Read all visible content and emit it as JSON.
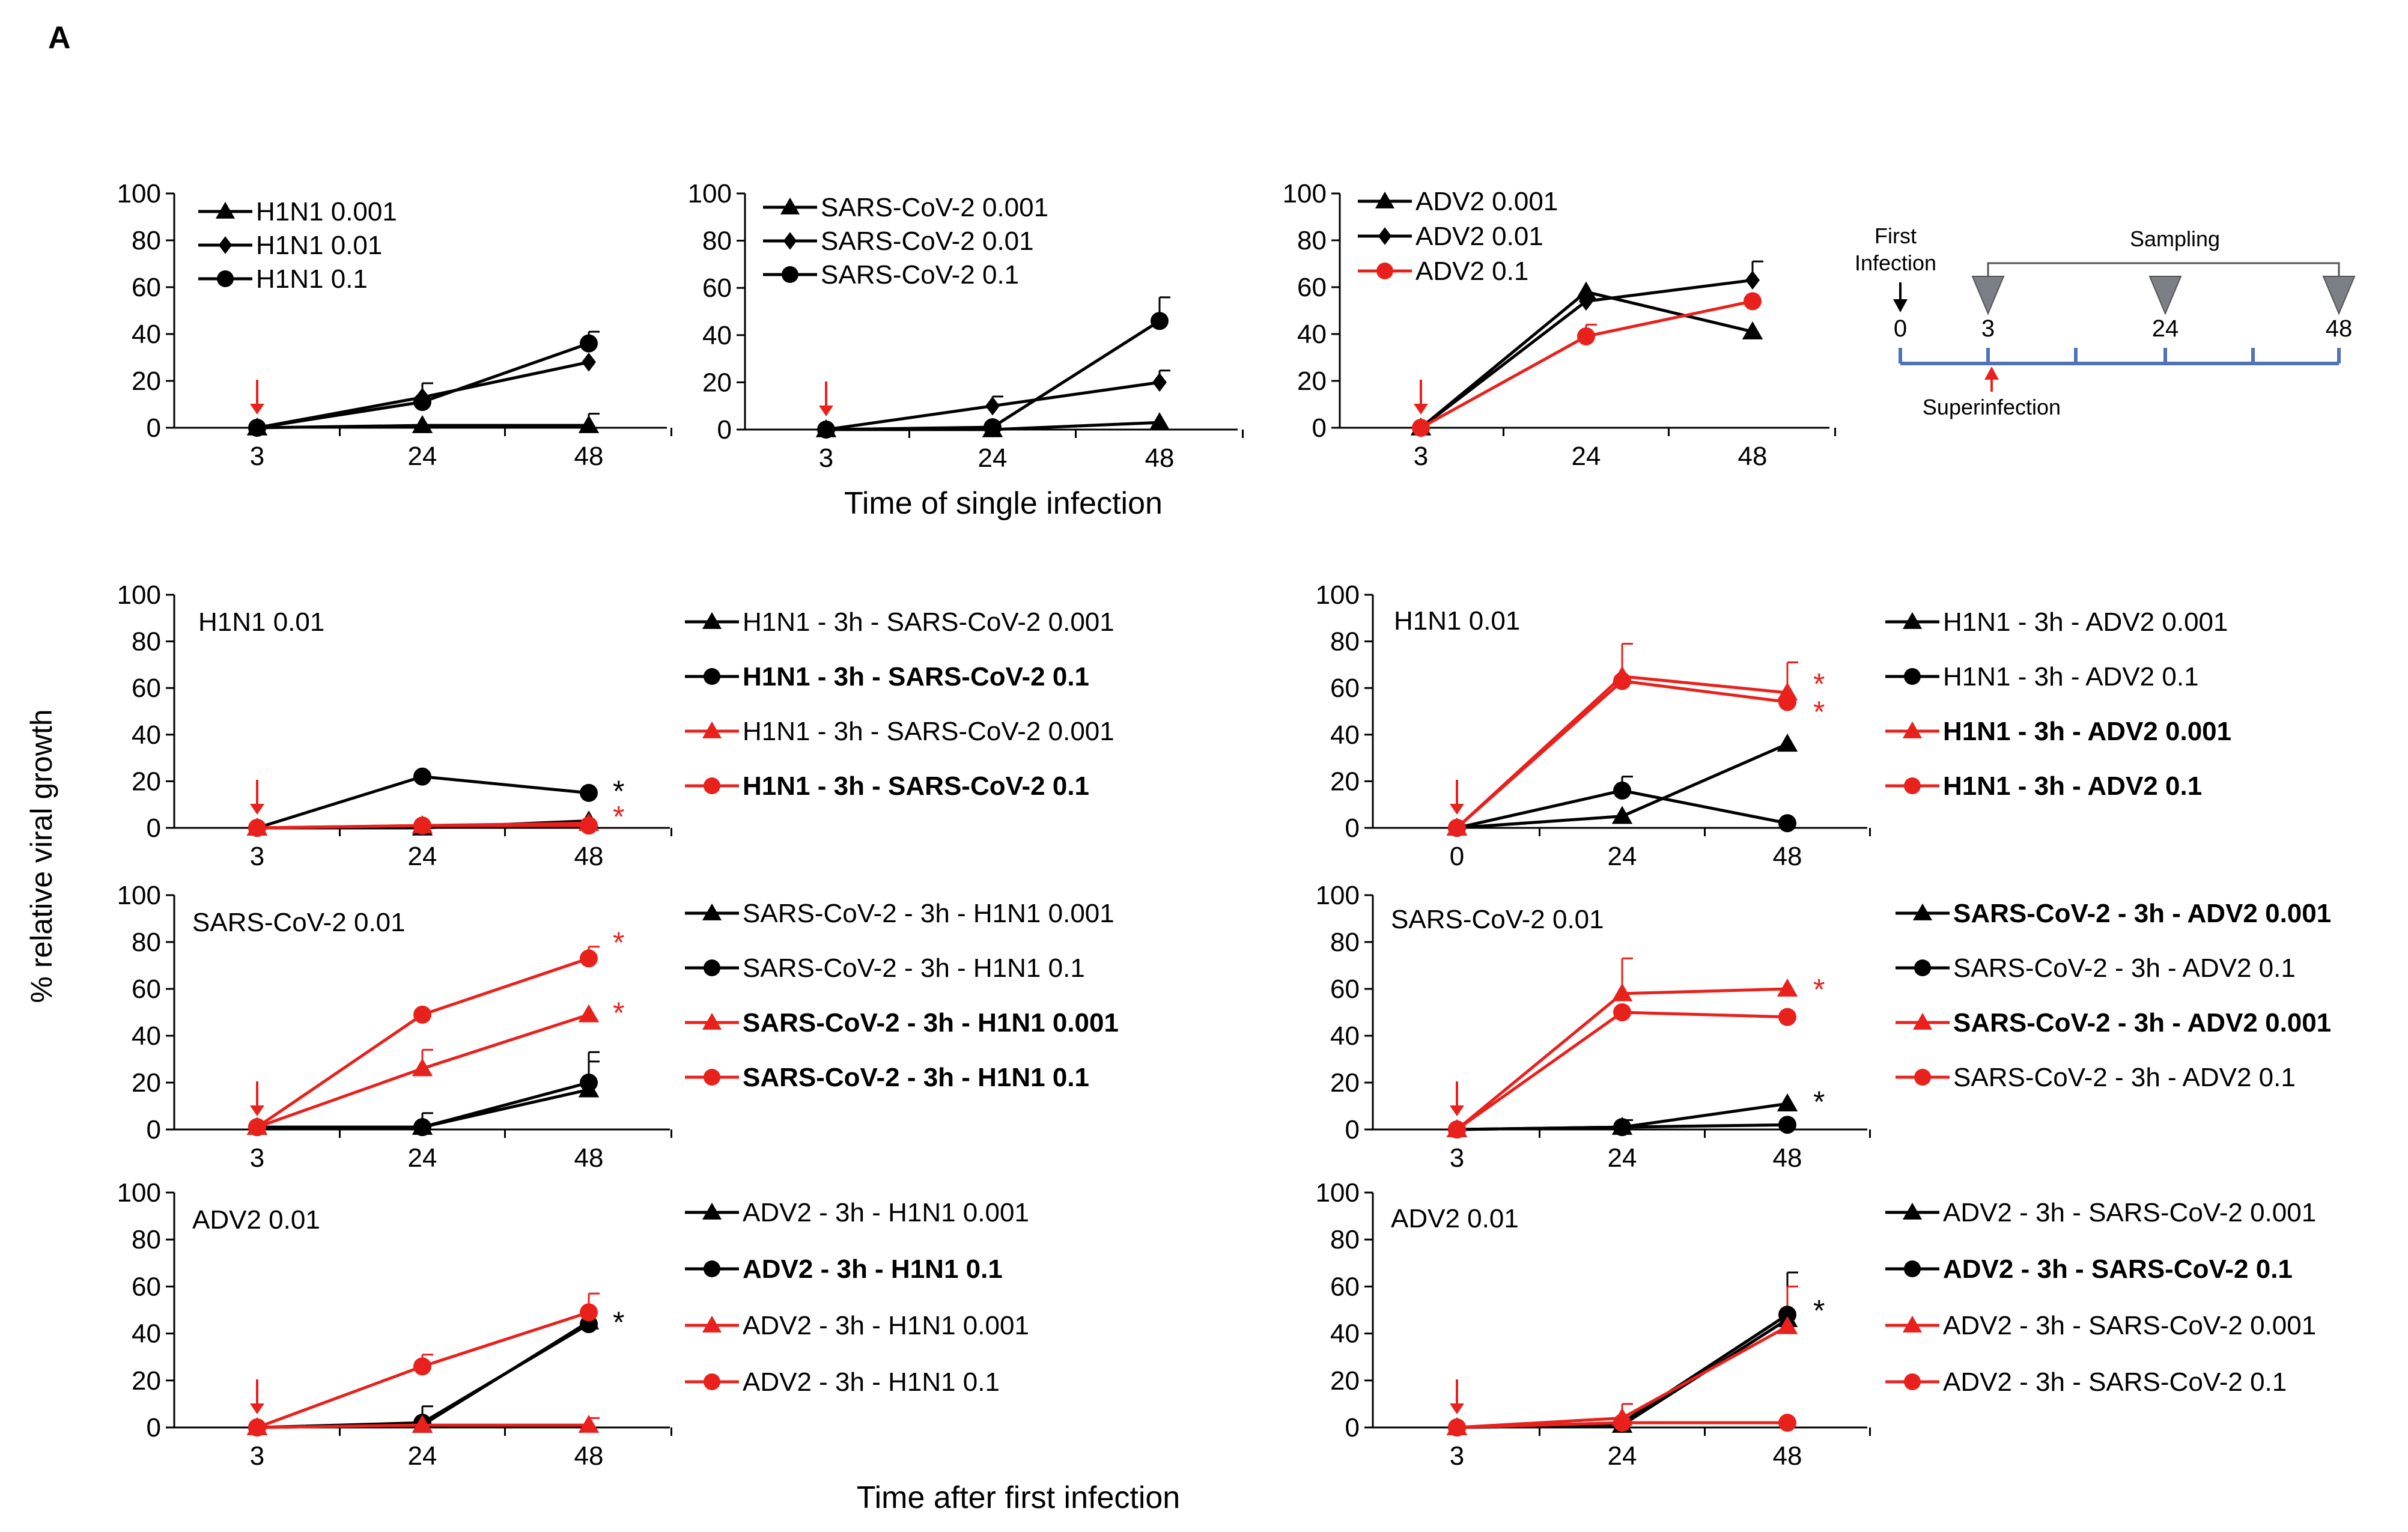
{
  "figure": {
    "panel_letter": "A",
    "y_axis_label": "% relative viral growth",
    "single_infection_xlabel": "Time of single infection",
    "after_infection_xlabel": "Time after first infection"
  },
  "schematic": {
    "first_label_line1": "First",
    "first_label_line2": "Infection",
    "sampling_label": "Sampling",
    "superinfection_label": "Superinfection",
    "ticks": [
      "0",
      "3",
      "24",
      "48"
    ]
  },
  "colors": {
    "black": "#000000",
    "red": "#e8211d",
    "timeline": "#4f72b8",
    "marker_gray": "#7c7f86"
  },
  "chart_data": [
    {
      "id": "single-h1n1",
      "type": "line",
      "title": "",
      "xlabel": "",
      "ylabel": "",
      "categories": [
        "3",
        "24",
        "48"
      ],
      "ylim": [
        0,
        100
      ],
      "yticks": [
        "0",
        "20",
        "40",
        "60",
        "80",
        "100"
      ],
      "series": [
        {
          "name": "H1N1 0.001",
          "marker": "triangle",
          "color": "black",
          "bold": false,
          "values": [
            0,
            1,
            1
          ],
          "errors": [
            0,
            0,
            5
          ]
        },
        {
          "name": "H1N1 0.01",
          "marker": "diamond",
          "color": "black",
          "bold": false,
          "values": [
            0,
            13,
            28
          ],
          "errors": [
            0,
            0,
            0
          ]
        },
        {
          "name": "H1N1 0.1",
          "marker": "circle",
          "color": "black",
          "bold": false,
          "values": [
            0,
            11,
            36
          ],
          "errors": [
            0,
            8,
            5
          ]
        }
      ]
    },
    {
      "id": "single-sars",
      "type": "line",
      "title": "",
      "xlabel": "",
      "ylabel": "",
      "categories": [
        "3",
        "24",
        "48"
      ],
      "ylim": [
        0,
        100
      ],
      "yticks": [
        "0",
        "20",
        "40",
        "60",
        "80",
        "100"
      ],
      "series": [
        {
          "name": "SARS-CoV-2 0.001",
          "marker": "triangle",
          "color": "black",
          "bold": false,
          "values": [
            0,
            0,
            3
          ],
          "errors": [
            0,
            0,
            0
          ]
        },
        {
          "name": "SARS-CoV-2 0.01",
          "marker": "diamond",
          "color": "black",
          "bold": false,
          "values": [
            0,
            10,
            20
          ],
          "errors": [
            0,
            4,
            5
          ]
        },
        {
          "name": "SARS-CoV-2 0.1",
          "marker": "circle",
          "color": "black",
          "bold": false,
          "values": [
            0,
            1,
            46
          ],
          "errors": [
            0,
            0,
            10
          ]
        }
      ]
    },
    {
      "id": "single-adv2",
      "type": "line",
      "title": "",
      "xlabel": "",
      "ylabel": "",
      "categories": [
        "3",
        "24",
        "48"
      ],
      "ylim": [
        0,
        100
      ],
      "yticks": [
        "0",
        "20",
        "40",
        "60",
        "80",
        "100"
      ],
      "series": [
        {
          "name": "ADV2 0.001",
          "marker": "triangle",
          "color": "black",
          "bold": false,
          "values": [
            0,
            58,
            41
          ],
          "errors": [
            0,
            0,
            0
          ]
        },
        {
          "name": "ADV2 0.01",
          "marker": "diamond",
          "color": "black",
          "bold": false,
          "values": [
            0,
            54,
            63
          ],
          "errors": [
            0,
            0,
            8
          ]
        },
        {
          "name": "ADV2 0.1",
          "marker": "circle",
          "color": "red",
          "bold": false,
          "values": [
            0,
            39,
            54
          ],
          "errors": [
            0,
            5,
            0
          ]
        }
      ]
    },
    {
      "id": "co-h1n1-sars",
      "type": "line",
      "title": "H1N1 0.01",
      "xlabel": "",
      "ylabel": "",
      "categories": [
        "3",
        "24",
        "48"
      ],
      "ylim": [
        0,
        100
      ],
      "yticks": [
        "0",
        "20",
        "40",
        "60",
        "80",
        "100"
      ],
      "significance": [
        {
          "text": "*",
          "color": "black",
          "value": 16
        },
        {
          "text": "*",
          "color": "red",
          "value": 5
        }
      ],
      "series": [
        {
          "name": "H1N1 - 3h - SARS-CoV-2 0.001",
          "marker": "triangle",
          "color": "black",
          "bold": false,
          "values": [
            0,
            0,
            3
          ],
          "errors": [
            0,
            0,
            0
          ]
        },
        {
          "name": "H1N1 - 3h - SARS-CoV-2 0.1",
          "marker": "circle",
          "color": "black",
          "bold": true,
          "values": [
            0,
            22,
            15
          ],
          "errors": [
            0,
            0,
            0
          ]
        },
        {
          "name": "H1N1 - 3h - SARS-CoV-2 0.001",
          "marker": "triangle",
          "color": "red",
          "bold": false,
          "values": [
            0,
            1,
            2
          ],
          "errors": [
            0,
            0,
            0
          ]
        },
        {
          "name": "H1N1 - 3h - SARS-CoV-2 0.1",
          "marker": "circle",
          "color": "red",
          "bold": true,
          "values": [
            0,
            1,
            1
          ],
          "errors": [
            0,
            0,
            0
          ]
        }
      ]
    },
    {
      "id": "co-h1n1-adv2",
      "type": "line",
      "title": "H1N1 0.01",
      "xlabel": "",
      "ylabel": "",
      "categories": [
        "0",
        "24",
        "48"
      ],
      "ylim": [
        0,
        100
      ],
      "yticks": [
        "0",
        "20",
        "40",
        "60",
        "80",
        "100"
      ],
      "significance": [
        {
          "text": "*",
          "color": "red",
          "value": 62
        },
        {
          "text": "*",
          "color": "red",
          "value": 50
        }
      ],
      "series": [
        {
          "name": "H1N1 - 3h - ADV2 0.001",
          "marker": "triangle",
          "color": "black",
          "bold": false,
          "values": [
            0,
            5,
            36
          ],
          "errors": [
            0,
            0,
            0
          ]
        },
        {
          "name": "H1N1 - 3h - ADV2 0.1",
          "marker": "circle",
          "color": "black",
          "bold": false,
          "values": [
            0,
            16,
            2
          ],
          "errors": [
            0,
            6,
            0
          ]
        },
        {
          "name": "H1N1 - 3h - ADV2 0.001",
          "marker": "triangle",
          "color": "red",
          "bold": true,
          "values": [
            0,
            65,
            58
          ],
          "errors": [
            0,
            14,
            13
          ]
        },
        {
          "name": "H1N1 - 3h - ADV2 0.1",
          "marker": "circle",
          "color": "red",
          "bold": true,
          "values": [
            0,
            63,
            54
          ],
          "errors": [
            0,
            0,
            0
          ]
        }
      ]
    },
    {
      "id": "co-sars-h1n1",
      "type": "line",
      "title": "SARS-CoV-2 0.01",
      "xlabel": "",
      "ylabel": "",
      "categories": [
        "3",
        "24",
        "48"
      ],
      "ylim": [
        0,
        100
      ],
      "yticks": [
        "0",
        "20",
        "40",
        "60",
        "80",
        "100"
      ],
      "significance": [
        {
          "text": "*",
          "color": "red",
          "value": 80
        },
        {
          "text": "*",
          "color": "red",
          "value": 50
        }
      ],
      "series": [
        {
          "name": "SARS-CoV-2 - 3h - H1N1 0.001",
          "marker": "triangle",
          "color": "black",
          "bold": false,
          "values": [
            1,
            1,
            17
          ],
          "errors": [
            0,
            6,
            12
          ]
        },
        {
          "name": "SARS-CoV-2 - 3h - H1N1 0.1",
          "marker": "circle",
          "color": "black",
          "bold": false,
          "values": [
            1,
            1,
            20
          ],
          "errors": [
            0,
            0,
            13
          ]
        },
        {
          "name": "SARS-CoV-2 - 3h - H1N1 0.001",
          "marker": "triangle",
          "color": "red",
          "bold": true,
          "values": [
            1,
            26,
            49
          ],
          "errors": [
            0,
            8,
            0
          ]
        },
        {
          "name": "SARS-CoV-2 - 3h - H1N1 0.1",
          "marker": "circle",
          "color": "red",
          "bold": true,
          "values": [
            1,
            49,
            73
          ],
          "errors": [
            0,
            0,
            5
          ]
        }
      ]
    },
    {
      "id": "co-sars-adv2",
      "type": "line",
      "title": "SARS-CoV-2 0.01",
      "xlabel": "",
      "ylabel": "",
      "categories": [
        "3",
        "24",
        "48"
      ],
      "ylim": [
        0,
        100
      ],
      "yticks": [
        "0",
        "20",
        "40",
        "60",
        "80",
        "100"
      ],
      "significance": [
        {
          "text": "*",
          "color": "red",
          "value": 60
        },
        {
          "text": "*",
          "color": "black",
          "value": 12
        }
      ],
      "series": [
        {
          "name": "SARS-CoV-2 - 3h - ADV2 0.001",
          "marker": "triangle",
          "color": "black",
          "bold": true,
          "values": [
            0,
            1,
            11
          ],
          "errors": [
            0,
            0,
            0
          ]
        },
        {
          "name": "SARS-CoV-2 - 3h - ADV2 0.1",
          "marker": "circle",
          "color": "black",
          "bold": false,
          "values": [
            0,
            1,
            2
          ],
          "errors": [
            0,
            3,
            0
          ]
        },
        {
          "name": "SARS-CoV-2 - 3h - ADV2 0.001",
          "marker": "triangle",
          "color": "red",
          "bold": true,
          "values": [
            0,
            58,
            60
          ],
          "errors": [
            0,
            15,
            0
          ]
        },
        {
          "name": "SARS-CoV-2 - 3h - ADV2 0.1",
          "marker": "circle",
          "color": "red",
          "bold": false,
          "values": [
            0,
            50,
            48
          ],
          "errors": [
            0,
            0,
            0
          ]
        }
      ]
    },
    {
      "id": "co-adv2-h1n1",
      "type": "line",
      "title": "ADV2 0.01",
      "xlabel": "",
      "ylabel": "",
      "categories": [
        "3",
        "24",
        "48"
      ],
      "ylim": [
        0,
        100
      ],
      "yticks": [
        "0",
        "20",
        "40",
        "60",
        "80",
        "100"
      ],
      "significance": [
        {
          "text": "*",
          "color": "black",
          "value": 45
        }
      ],
      "series": [
        {
          "name": "ADV2 - 3h - H1N1 0.001",
          "marker": "triangle",
          "color": "black",
          "bold": false,
          "values": [
            0,
            1,
            45
          ],
          "errors": [
            0,
            8,
            0
          ]
        },
        {
          "name": "ADV2 - 3h - H1N1 0.1",
          "marker": "circle",
          "color": "black",
          "bold": true,
          "values": [
            0,
            2,
            44
          ],
          "errors": [
            0,
            0,
            0
          ]
        },
        {
          "name": "ADV2 - 3h - H1N1 0.001",
          "marker": "triangle",
          "color": "red",
          "bold": false,
          "values": [
            0,
            1,
            1
          ],
          "errors": [
            0,
            0,
            3
          ]
        },
        {
          "name": "ADV2 - 3h - H1N1 0.1",
          "marker": "circle",
          "color": "red",
          "bold": false,
          "values": [
            0,
            26,
            49
          ],
          "errors": [
            0,
            5,
            8
          ]
        }
      ]
    },
    {
      "id": "co-adv2-sars",
      "type": "line",
      "title": "ADV2 0.01",
      "xlabel": "",
      "ylabel": "",
      "categories": [
        "3",
        "24",
        "48"
      ],
      "ylim": [
        0,
        100
      ],
      "yticks": [
        "0",
        "20",
        "40",
        "60",
        "80",
        "100"
      ],
      "significance": [
        {
          "text": "*",
          "color": "black",
          "value": 50
        }
      ],
      "series": [
        {
          "name": "ADV2 - 3h - SARS-CoV-2 0.001",
          "marker": "triangle",
          "color": "black",
          "bold": false,
          "values": [
            0,
            1,
            46
          ],
          "errors": [
            0,
            0,
            0
          ]
        },
        {
          "name": "ADV2 - 3h - SARS-CoV-2 0.1",
          "marker": "circle",
          "color": "black",
          "bold": true,
          "values": [
            0,
            2,
            48
          ],
          "errors": [
            0,
            0,
            18
          ]
        },
        {
          "name": "ADV2 - 3h - SARS-CoV-2 0.001",
          "marker": "triangle",
          "color": "red",
          "bold": false,
          "values": [
            0,
            4,
            43
          ],
          "errors": [
            0,
            6,
            17
          ]
        },
        {
          "name": "ADV2 - 3h - SARS-CoV-2 0.1",
          "marker": "circle",
          "color": "red",
          "bold": false,
          "values": [
            0,
            2,
            2
          ],
          "errors": [
            0,
            0,
            0
          ]
        }
      ]
    }
  ]
}
